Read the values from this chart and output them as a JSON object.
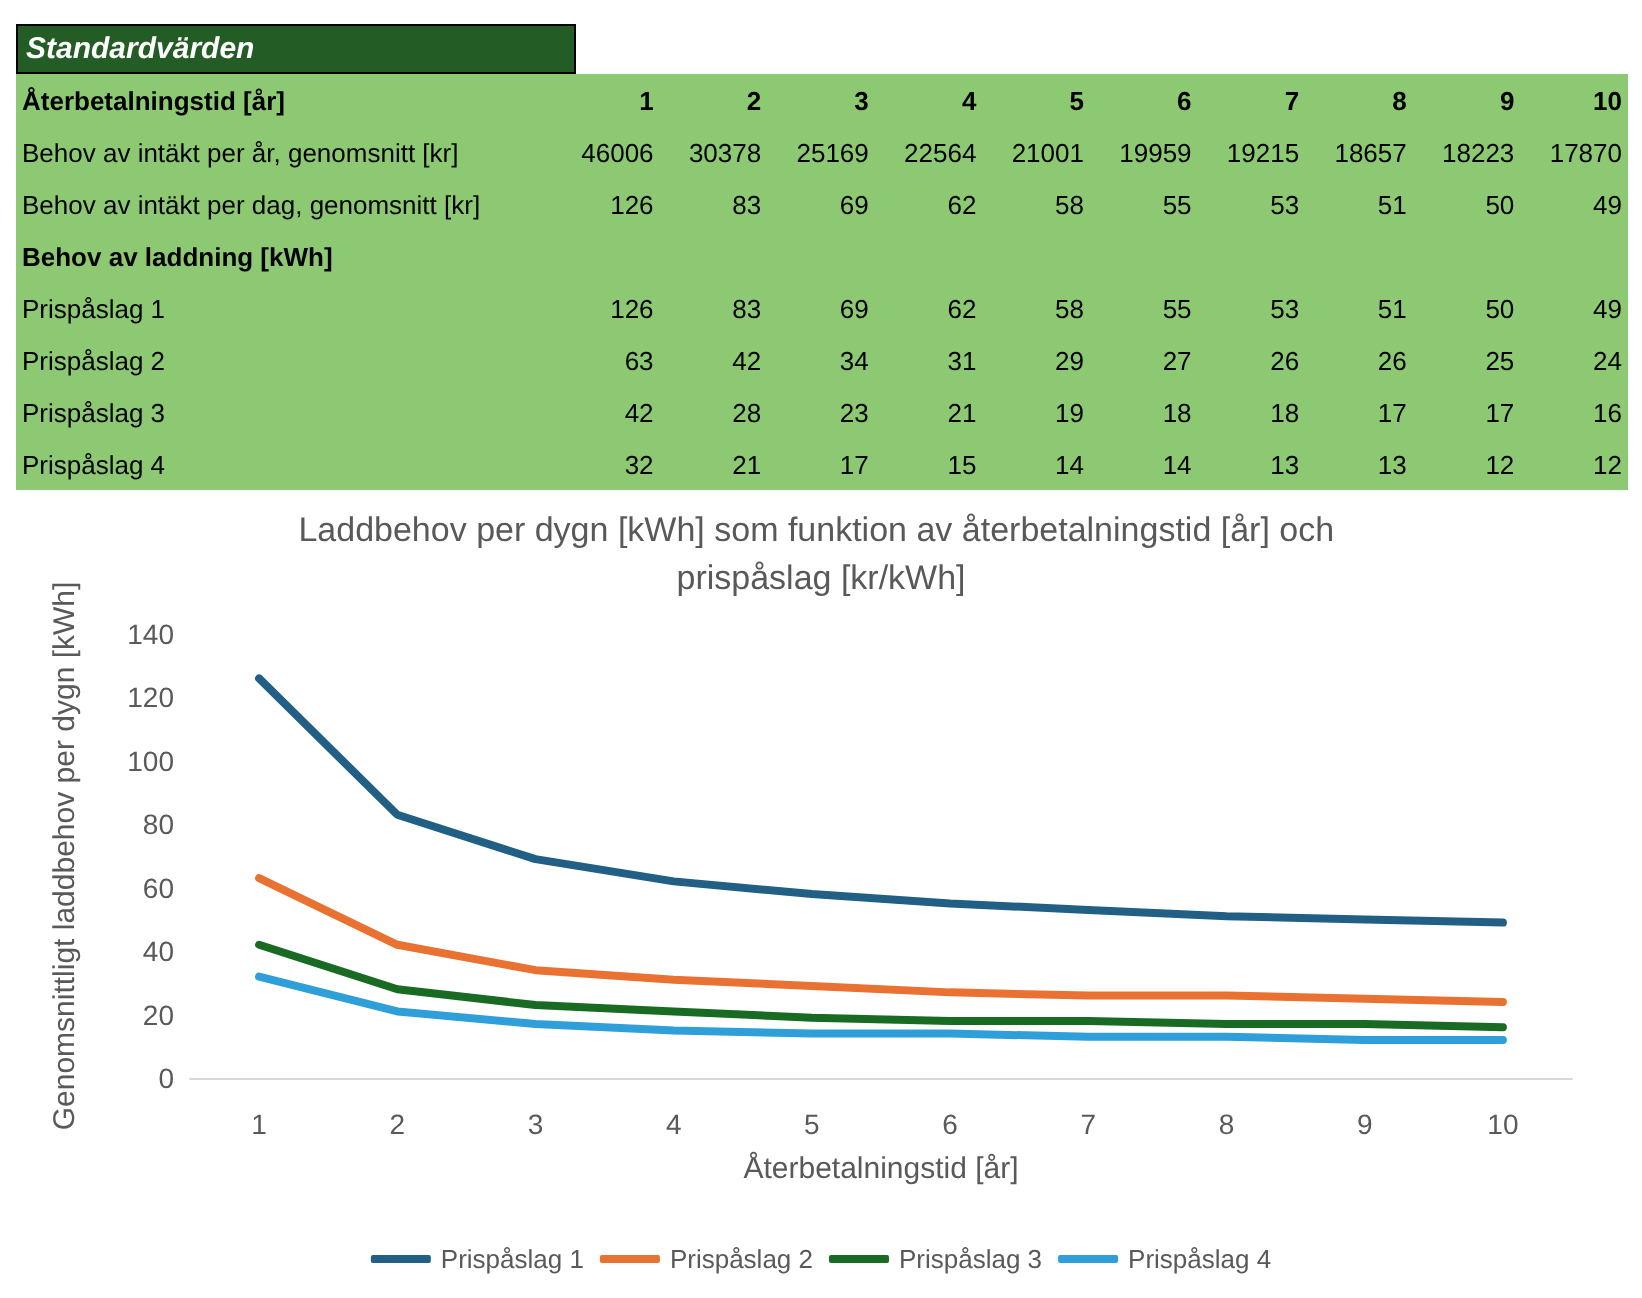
{
  "chart_data": [
    {
      "type": "heatmap",
      "title": "Standardvärden",
      "xlabel": "Återbetalningstid [år]",
      "categories": [
        "1",
        "2",
        "3",
        "4",
        "5",
        "6",
        "7",
        "8",
        "9",
        "10"
      ],
      "y_categories": [
        "Behov av intäkt per år, genomsnitt [kr]",
        "Behov av intäkt per dag, genomsnitt [kr]",
        "Behov av laddning [kWh]",
        "Prispåslag 1",
        "Prispåslag 2",
        "Prispåslag 3",
        "Prispåslag 4"
      ],
      "data_labels": true,
      "cells": [
        [
          46006,
          30378,
          25169,
          22564,
          21001,
          19959,
          19215,
          18657,
          18223,
          17870
        ],
        [
          126,
          83,
          69,
          62,
          58,
          55,
          53,
          51,
          50,
          49
        ],
        [
          null,
          null,
          null,
          null,
          null,
          null,
          null,
          null,
          null,
          null
        ],
        [
          126,
          83,
          69,
          62,
          58,
          55,
          53,
          51,
          50,
          49
        ],
        [
          63,
          42,
          34,
          31,
          29,
          27,
          26,
          26,
          25,
          24
        ],
        [
          42,
          28,
          23,
          21,
          19,
          18,
          18,
          17,
          17,
          16
        ],
        [
          32,
          21,
          17,
          15,
          14,
          14,
          13,
          13,
          12,
          12
        ]
      ]
    },
    {
      "type": "line",
      "title": "Laddbehov per dygn [kWh] som funktion av återbetalningstid [år] och prispåslag [kr/kWh]",
      "xlabel": "Återbetalningstid [år]",
      "ylabel": "Genomsnittligt laddbehov per dygn [kWh]",
      "categories": [
        "1",
        "2",
        "3",
        "4",
        "5",
        "6",
        "7",
        "8",
        "9",
        "10"
      ],
      "ylim": [
        0,
        140
      ],
      "yticks": [
        0,
        20,
        40,
        60,
        80,
        100,
        120,
        140
      ],
      "legend": "bottom",
      "marker": "none",
      "line_style": "solid",
      "series": [
        {
          "name": "Prispåslag 1",
          "color": "#215f85",
          "values": [
            126,
            83,
            69,
            62,
            58,
            55,
            53,
            51,
            50,
            49
          ]
        },
        {
          "name": "Prispåslag 2",
          "color": "#e97132",
          "values": [
            63,
            42,
            34,
            31,
            29,
            27,
            26,
            26,
            25,
            24
          ]
        },
        {
          "name": "Prispåslag 3",
          "color": "#196b24",
          "values": [
            42,
            28,
            23,
            21,
            19,
            18,
            18,
            17,
            17,
            16
          ]
        },
        {
          "name": "Prispåslag 4",
          "color": "#2e9fd8",
          "values": [
            32,
            21,
            17,
            15,
            14,
            14,
            13,
            13,
            12,
            12
          ]
        }
      ]
    }
  ]
}
